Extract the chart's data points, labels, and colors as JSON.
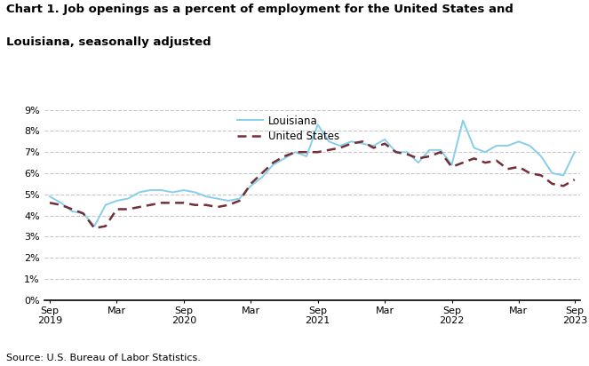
{
  "title_line1": "Chart 1. Job openings as a percent of employment for the United States and",
  "title_line2": "Louisiana, seasonally adjusted",
  "source": "Source: U.S. Bureau of Labor Statistics.",
  "louisiana_color": "#87CEEB",
  "us_color": "#722F37",
  "background_color": "#ffffff",
  "ylim": [
    0,
    9
  ],
  "yticks": [
    0,
    1,
    2,
    3,
    4,
    5,
    6,
    7,
    8,
    9
  ],
  "legend_labels": [
    "Louisiana",
    "United States"
  ],
  "louisiana": [
    4.9,
    4.6,
    4.2,
    4.1,
    3.5,
    4.5,
    4.7,
    4.8,
    5.1,
    5.2,
    5.2,
    5.1,
    5.2,
    5.1,
    4.9,
    4.8,
    4.7,
    4.8,
    5.4,
    5.8,
    6.4,
    6.7,
    7.0,
    6.8,
    8.3,
    7.5,
    7.3,
    7.5,
    7.4,
    7.3,
    7.6,
    7.0,
    7.0,
    6.5,
    7.1,
    7.1,
    6.4,
    8.5,
    7.2,
    7.0,
    7.3,
    7.3,
    7.5,
    7.3,
    6.8,
    6.0,
    5.9,
    7.0
  ],
  "us": [
    4.6,
    4.5,
    4.3,
    4.1,
    3.4,
    3.5,
    4.3,
    4.3,
    4.4,
    4.5,
    4.6,
    4.6,
    4.6,
    4.5,
    4.5,
    4.4,
    4.5,
    4.7,
    5.5,
    6.0,
    6.5,
    6.8,
    7.0,
    7.0,
    7.0,
    7.1,
    7.2,
    7.4,
    7.5,
    7.2,
    7.4,
    7.0,
    6.9,
    6.7,
    6.8,
    7.0,
    6.3,
    6.5,
    6.7,
    6.5,
    6.6,
    6.2,
    6.3,
    6.0,
    5.9,
    5.5,
    5.4,
    5.7
  ],
  "tick_positions": [
    0,
    6,
    12,
    18,
    24,
    30,
    36,
    42,
    47
  ],
  "tick_labels": [
    "Sep\n2019",
    "Mar",
    "Sep\n2020",
    "Mar",
    "Sep\n2021",
    "Mar",
    "Sep\n2022",
    "Mar",
    "Sep\n2023"
  ]
}
